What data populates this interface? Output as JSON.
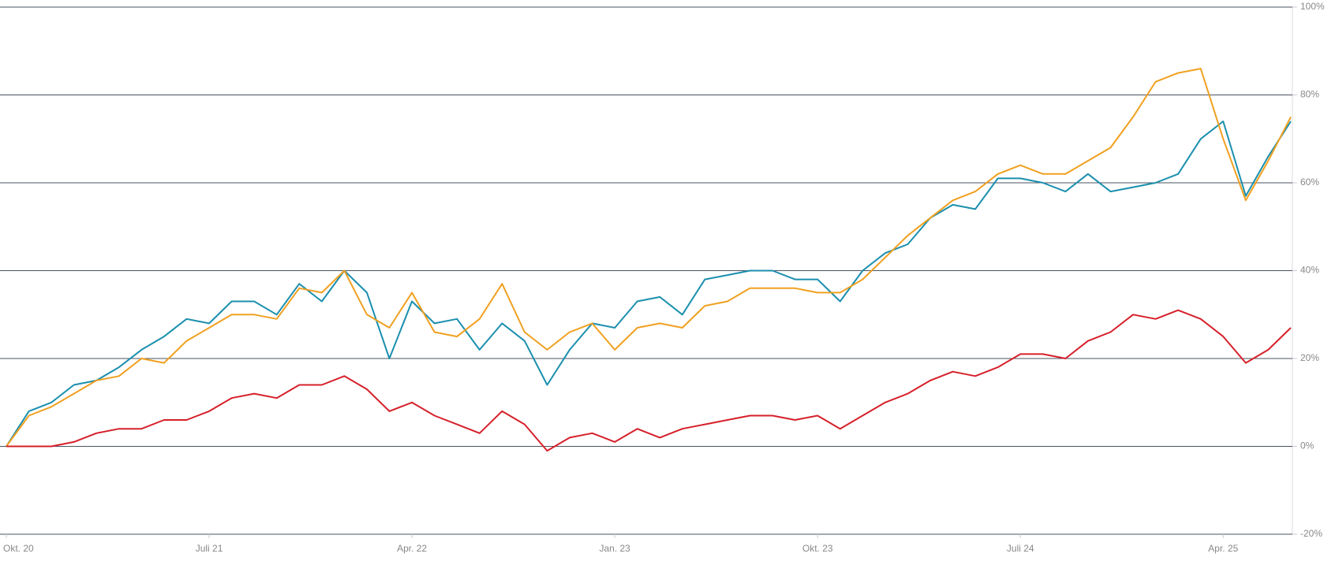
{
  "chart_data": {
    "type": "line",
    "categories": [
      "Okt. 20",
      null,
      null,
      null,
      null,
      null,
      null,
      null,
      null,
      "Juli 21",
      null,
      null,
      null,
      null,
      null,
      null,
      null,
      null,
      "Apr. 22",
      null,
      null,
      null,
      null,
      null,
      null,
      null,
      null,
      "Jan. 23",
      null,
      null,
      null,
      null,
      null,
      null,
      null,
      null,
      "Okt. 23",
      null,
      null,
      null,
      null,
      null,
      null,
      null,
      null,
      "Juli 24",
      null,
      null,
      null,
      null,
      null,
      null,
      null,
      null,
      "Apr. 25",
      null,
      null,
      null
    ],
    "series": [
      {
        "color": "#1b8fae",
        "values": [
          0,
          8,
          10,
          14,
          15,
          18,
          22,
          25,
          29,
          28,
          33,
          33,
          30,
          37,
          33,
          40,
          35,
          20,
          33,
          28,
          29,
          22,
          28,
          24,
          14,
          22,
          28,
          27,
          33,
          34,
          30,
          38,
          39,
          40,
          40,
          38,
          38,
          33,
          40,
          44,
          46,
          52,
          55,
          54,
          61,
          61,
          60,
          58,
          62,
          58,
          59,
          60,
          62,
          70,
          74,
          57,
          66,
          74
        ]
      },
      {
        "color": "#f0a020",
        "values": [
          0,
          7,
          9,
          12,
          15,
          16,
          20,
          19,
          24,
          27,
          30,
          30,
          29,
          36,
          35,
          40,
          30,
          27,
          35,
          26,
          25,
          29,
          37,
          26,
          22,
          26,
          28,
          22,
          27,
          28,
          27,
          32,
          33,
          36,
          36,
          36,
          35,
          35,
          38,
          43,
          48,
          52,
          56,
          58,
          62,
          64,
          62,
          62,
          65,
          68,
          75,
          83,
          85,
          86,
          70,
          56,
          65,
          75
        ]
      },
      {
        "color": "#d6202a",
        "values": [
          0,
          0,
          0,
          1,
          3,
          4,
          4,
          6,
          6,
          8,
          11,
          12,
          11,
          14,
          14,
          16,
          13,
          8,
          10,
          7,
          5,
          3,
          8,
          5,
          -1,
          2,
          3,
          1,
          4,
          2,
          4,
          5,
          6,
          7,
          7,
          6,
          7,
          4,
          7,
          10,
          12,
          15,
          17,
          16,
          18,
          21,
          21,
          20,
          24,
          26,
          30,
          29,
          31,
          29,
          25,
          19,
          22,
          27
        ]
      }
    ],
    "ylim": [
      -20,
      100
    ],
    "yticks": [
      {
        "value": -20,
        "label": "-20%"
      },
      {
        "value": 0,
        "label": "0%"
      },
      {
        "value": 20,
        "label": "20%"
      },
      {
        "value": 40,
        "label": "40%"
      },
      {
        "value": 60,
        "label": "60%"
      },
      {
        "value": 80,
        "label": "80%"
      },
      {
        "value": 100,
        "label": "100%"
      }
    ],
    "grid": true
  }
}
